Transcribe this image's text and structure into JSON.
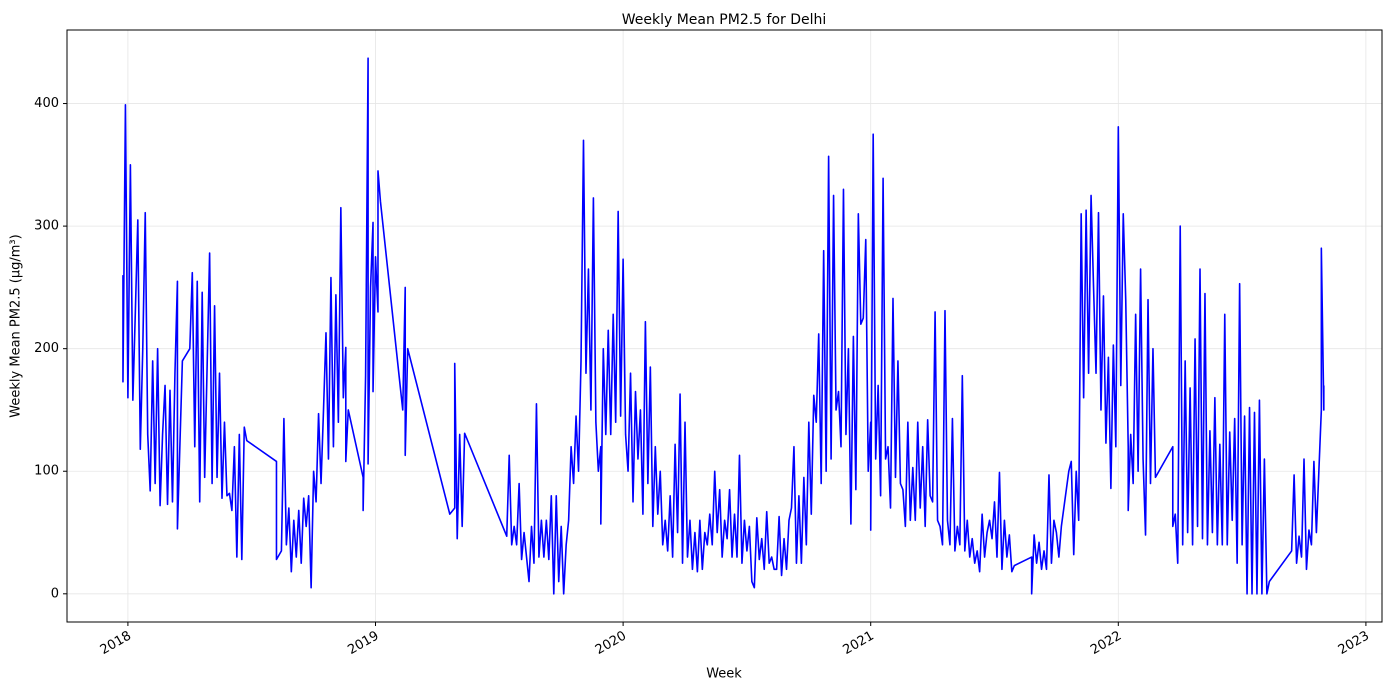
{
  "chart_data": {
    "type": "line",
    "title": "Weekly Mean PM2.5 for Delhi",
    "x_label": "Week",
    "y_label": "Weekly Mean PM2.5 (µg/m³)",
    "xlim": [
      2017.754,
      2023.065
    ],
    "xticks": [
      2018,
      2019,
      2020,
      2021,
      2022,
      2023
    ],
    "ylim": [
      -23,
      460
    ],
    "yticks": [
      0,
      100,
      200,
      300,
      400
    ],
    "grid": true,
    "series": [
      {
        "name": "Weekly Mean PM2.5",
        "color": "#0000ff",
        "x": [
          2017.98,
          2017.98,
          2017.99,
          2018.0,
          2018.01,
          2018.02,
          2018.03,
          2018.04,
          2018.05,
          2018.06,
          2018.07,
          2018.08,
          2018.09,
          2018.1,
          2018.11,
          2018.12,
          2018.13,
          2018.14,
          2018.15,
          2018.16,
          2018.17,
          2018.18,
          2018.19,
          2018.2,
          2018.2,
          2018.22,
          2018.25,
          2018.26,
          2018.27,
          2018.28,
          2018.29,
          2018.3,
          2018.31,
          2018.33,
          2018.34,
          2018.35,
          2018.36,
          2018.37,
          2018.38,
          2018.39,
          2018.4,
          2018.41,
          2018.42,
          2018.43,
          2018.44,
          2018.45,
          2018.46,
          2018.47,
          2018.48,
          2018.6,
          2018.6,
          2018.62,
          2018.63,
          2018.64,
          2018.65,
          2018.66,
          2018.67,
          2018.68,
          2018.69,
          2018.7,
          2018.71,
          2018.72,
          2018.73,
          2018.74,
          2018.75,
          2018.76,
          2018.77,
          2018.78,
          2018.79,
          2018.8,
          2018.81,
          2018.82,
          2018.83,
          2018.84,
          2018.85,
          2018.86,
          2018.87,
          2018.88,
          2018.88,
          2018.89,
          2018.95,
          2018.95,
          2018.96,
          2018.97,
          2018.97,
          2018.98,
          2018.99,
          2018.99,
          2019.0,
          2019.01,
          2019.01,
          2019.02,
          2019.11,
          2019.12,
          2019.12,
          2019.13,
          2019.3,
          2019.32,
          2019.32,
          2019.33,
          2019.34,
          2019.35,
          2019.36,
          2019.53,
          2019.54,
          2019.55,
          2019.56,
          2019.57,
          2019.58,
          2019.59,
          2019.6,
          2019.61,
          2019.62,
          2019.63,
          2019.64,
          2019.65,
          2019.66,
          2019.67,
          2019.68,
          2019.69,
          2019.7,
          2019.71,
          2019.72,
          2019.73,
          2019.74,
          2019.75,
          2019.76,
          2019.77,
          2019.78,
          2019.79,
          2019.8,
          2019.81,
          2019.82,
          2019.83,
          2019.84,
          2019.85,
          2019.86,
          2019.87,
          2019.88,
          2019.89,
          2019.9,
          2019.91,
          2019.91,
          2019.92,
          2019.93,
          2019.94,
          2019.95,
          2019.96,
          2019.97,
          2019.98,
          2019.99,
          2020.0,
          2020.01,
          2020.02,
          2020.03,
          2020.04,
          2020.05,
          2020.06,
          2020.07,
          2020.08,
          2020.09,
          2020.1,
          2020.11,
          2020.12,
          2020.13,
          2020.14,
          2020.15,
          2020.16,
          2020.17,
          2020.18,
          2020.19,
          2020.2,
          2020.21,
          2020.22,
          2020.23,
          2020.24,
          2020.25,
          2020.26,
          2020.27,
          2020.28,
          2020.29,
          2020.3,
          2020.31,
          2020.32,
          2020.33,
          2020.34,
          2020.35,
          2020.36,
          2020.37,
          2020.38,
          2020.39,
          2020.4,
          2020.41,
          2020.42,
          2020.43,
          2020.44,
          2020.45,
          2020.46,
          2020.47,
          2020.48,
          2020.49,
          2020.5,
          2020.51,
          2020.52,
          2020.53,
          2020.54,
          2020.55,
          2020.56,
          2020.57,
          2020.58,
          2020.59,
          2020.6,
          2020.61,
          2020.62,
          2020.63,
          2020.64,
          2020.65,
          2020.66,
          2020.67,
          2020.68,
          2020.69,
          2020.7,
          2020.71,
          2020.72,
          2020.73,
          2020.74,
          2020.75,
          2020.76,
          2020.77,
          2020.78,
          2020.79,
          2020.8,
          2020.81,
          2020.82,
          2020.83,
          2020.84,
          2020.85,
          2020.86,
          2020.87,
          2020.88,
          2020.89,
          2020.9,
          2020.91,
          2020.92,
          2020.93,
          2020.94,
          2020.95,
          2020.96,
          2020.97,
          2020.98,
          2020.99,
          2021.0,
          2021.0,
          2021.01,
          2021.02,
          2021.03,
          2021.04,
          2021.05,
          2021.06,
          2021.07,
          2021.08,
          2021.09,
          2021.1,
          2021.11,
          2021.12,
          2021.13,
          2021.14,
          2021.15,
          2021.16,
          2021.17,
          2021.18,
          2021.19,
          2021.2,
          2021.21,
          2021.22,
          2021.23,
          2021.24,
          2021.25,
          2021.26,
          2021.27,
          2021.28,
          2021.29,
          2021.3,
          2021.31,
          2021.32,
          2021.33,
          2021.34,
          2021.35,
          2021.36,
          2021.37,
          2021.38,
          2021.39,
          2021.4,
          2021.41,
          2021.42,
          2021.43,
          2021.44,
          2021.45,
          2021.46,
          2021.47,
          2021.48,
          2021.49,
          2021.5,
          2021.51,
          2021.52,
          2021.53,
          2021.54,
          2021.55,
          2021.56,
          2021.57,
          2021.58,
          2021.65,
          2021.65,
          2021.66,
          2021.67,
          2021.68,
          2021.69,
          2021.7,
          2021.71,
          2021.72,
          2021.73,
          2021.74,
          2021.75,
          2021.76,
          2021.77,
          2021.8,
          2021.81,
          2021.82,
          2021.83,
          2021.84,
          2021.85,
          2021.86,
          2021.87,
          2021.88,
          2021.89,
          2021.9,
          2021.91,
          2021.92,
          2021.93,
          2021.94,
          2021.95,
          2021.96,
          2021.97,
          2021.98,
          2021.99,
          2022.0,
          2022.01,
          2022.02,
          2022.03,
          2022.04,
          2022.04,
          2022.05,
          2022.06,
          2022.07,
          2022.08,
          2022.09,
          2022.1,
          2022.11,
          2022.12,
          2022.13,
          2022.14,
          2022.15,
          2022.22,
          2022.22,
          2022.23,
          2022.24,
          2022.25,
          2022.26,
          2022.27,
          2022.28,
          2022.29,
          2022.3,
          2022.31,
          2022.32,
          2022.33,
          2022.34,
          2022.35,
          2022.36,
          2022.37,
          2022.38,
          2022.39,
          2022.4,
          2022.41,
          2022.42,
          2022.43,
          2022.44,
          2022.45,
          2022.46,
          2022.47,
          2022.48,
          2022.49,
          2022.5,
          2022.51,
          2022.52,
          2022.53,
          2022.54,
          2022.55,
          2022.56,
          2022.57,
          2022.58,
          2022.59,
          2022.6,
          2022.61,
          2022.7,
          2022.71,
          2022.72,
          2022.73,
          2022.74,
          2022.75,
          2022.76,
          2022.77,
          2022.78,
          2022.79,
          2022.8,
          2022.81,
          2022.82,
          2022.82,
          2022.83,
          2022.83
        ],
        "values": [
          260,
          173,
          399,
          160,
          350,
          158,
          230,
          305,
          118,
          200,
          311,
          130,
          84,
          190,
          90,
          200,
          72,
          130,
          170,
          73,
          166,
          75,
          180,
          255,
          53,
          190,
          200,
          262,
          120,
          255,
          75,
          246,
          95,
          278,
          90,
          235,
          95,
          180,
          78,
          140,
          80,
          82,
          68,
          120,
          30,
          130,
          28,
          136,
          125,
          108,
          28,
          35,
          143,
          40,
          70,
          18,
          60,
          30,
          68,
          25,
          78,
          55,
          80,
          5,
          100,
          75,
          147,
          90,
          150,
          213,
          110,
          258,
          120,
          244,
          140,
          315,
          160,
          201,
          108,
          150,
          95,
          68,
          178,
          437,
          106,
          250,
          303,
          165,
          275,
          230,
          345,
          320,
          150,
          250,
          113,
          200,
          65,
          70,
          188,
          45,
          130,
          55,
          131,
          47,
          113,
          40,
          55,
          40,
          90,
          28,
          50,
          30,
          10,
          55,
          25,
          155,
          30,
          60,
          30,
          60,
          28,
          80,
          0,
          80,
          10,
          55,
          0,
          40,
          60,
          120,
          90,
          145,
          100,
          190,
          370,
          180,
          265,
          150,
          323,
          140,
          100,
          120,
          57,
          200,
          130,
          215,
          130,
          228,
          140,
          312,
          145,
          273,
          130,
          100,
          180,
          75,
          165,
          110,
          150,
          65,
          222,
          90,
          185,
          55,
          120,
          65,
          100,
          40,
          60,
          35,
          80,
          30,
          122,
          50,
          163,
          25,
          140,
          30,
          60,
          20,
          50,
          18,
          60,
          20,
          50,
          40,
          65,
          40,
          100,
          50,
          85,
          30,
          60,
          45,
          85,
          30,
          65,
          30,
          113,
          25,
          60,
          35,
          55,
          10,
          5,
          62,
          28,
          45,
          20,
          67,
          25,
          30,
          20,
          20,
          63,
          15,
          45,
          20,
          60,
          70,
          120,
          25,
          80,
          25,
          95,
          40,
          140,
          65,
          162,
          140,
          212,
          90,
          280,
          100,
          357,
          110,
          325,
          150,
          165,
          120,
          330,
          130,
          200,
          57,
          210,
          85,
          310,
          220,
          225,
          289,
          100,
          140,
          52,
          375,
          110,
          170,
          80,
          339,
          110,
          120,
          70,
          241,
          95,
          190,
          90,
          85,
          55,
          140,
          60,
          103,
          60,
          140,
          70,
          120,
          55,
          142,
          80,
          75,
          230,
          60,
          55,
          40,
          231,
          60,
          40,
          143,
          35,
          55,
          40,
          178,
          35,
          60,
          30,
          45,
          25,
          35,
          18,
          65,
          30,
          50,
          60,
          45,
          75,
          30,
          99,
          20,
          60,
          30,
          48,
          18,
          23,
          30,
          0,
          48,
          25,
          42,
          20,
          35,
          20,
          97,
          25,
          60,
          50,
          30,
          55,
          100,
          108,
          32,
          100,
          60,
          310,
          160,
          313,
          180,
          325,
          250,
          180,
          311,
          150,
          243,
          123,
          193,
          86,
          203,
          120,
          381,
          170,
          310,
          240,
          120,
          68,
          130,
          90,
          228,
          100,
          265,
          110,
          48,
          240,
          90,
          200,
          95,
          120,
          55,
          65,
          25,
          300,
          40,
          190,
          50,
          168,
          40,
          208,
          55,
          265,
          45,
          245,
          40,
          133,
          50,
          160,
          40,
          122,
          40,
          228,
          40,
          132,
          60,
          143,
          25,
          253,
          40,
          145,
          0,
          152,
          0,
          148,
          0,
          158,
          0,
          110,
          0,
          10,
          35,
          97,
          25,
          47,
          30,
          110,
          20,
          52,
          40,
          108,
          50,
          100,
          150,
          282,
          150,
          170
        ]
      }
    ]
  }
}
